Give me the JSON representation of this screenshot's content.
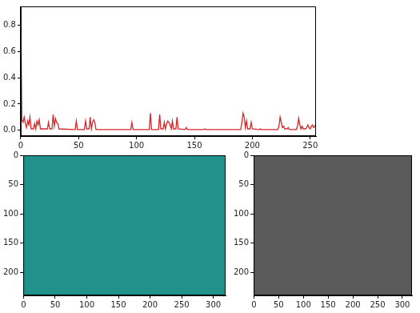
{
  "chart_data": [
    {
      "type": "line",
      "color": "#d62728",
      "grid": false,
      "x": [
        0,
        1,
        2,
        3,
        4,
        5,
        6,
        7,
        8,
        9,
        11,
        12,
        13,
        14,
        15,
        16,
        17,
        23,
        24,
        25,
        27,
        28,
        29,
        30,
        31,
        32,
        33,
        47,
        48,
        49,
        55,
        56,
        57,
        59,
        60,
        61,
        62,
        63,
        64,
        65,
        95,
        96,
        97,
        111,
        112,
        113,
        119,
        120,
        121,
        123,
        124,
        125,
        126,
        127,
        128,
        129,
        130,
        131,
        132,
        134,
        135,
        136,
        142,
        143,
        144,
        158,
        159,
        160,
        190,
        191,
        192,
        193,
        194,
        195,
        196,
        198,
        199,
        200,
        206,
        207,
        208,
        222,
        223,
        224,
        225,
        226,
        227,
        228,
        230,
        231,
        232,
        238,
        239,
        240,
        241,
        242,
        243,
        244,
        246,
        247,
        248,
        249,
        250,
        251,
        252,
        253,
        254,
        255
      ],
      "values": [
        0.9,
        0.08,
        0.06,
        0.1,
        0.05,
        0.02,
        0.07,
        0.04,
        0.1,
        0.01,
        0.01,
        0.05,
        0.01,
        0.07,
        0.04,
        0.08,
        0.01,
        0.01,
        0.06,
        0.01,
        0.01,
        0.12,
        0.03,
        0.09,
        0.06,
        0.05,
        0.01,
        0.005,
        0.07,
        0.005,
        0.005,
        0.07,
        0.01,
        0.01,
        0.1,
        0.01,
        0.06,
        0.08,
        0.06,
        0.005,
        0.005,
        0.06,
        0.005,
        0.005,
        0.13,
        0.005,
        0.005,
        0.12,
        0.01,
        0.01,
        0.06,
        0.01,
        0.05,
        0.07,
        0.06,
        0.04,
        0.01,
        0.07,
        0.01,
        0.01,
        0.1,
        0.01,
        0.005,
        0.02,
        0.005,
        0.005,
        0.01,
        0.005,
        0.005,
        0.06,
        0.13,
        0.1,
        0.02,
        0.07,
        0.01,
        0.01,
        0.06,
        0.01,
        0.005,
        0.01,
        0.005,
        0.005,
        0.03,
        0.1,
        0.06,
        0.02,
        0.03,
        0.01,
        0.01,
        0.02,
        0.005,
        0.005,
        0.03,
        0.09,
        0.04,
        0.01,
        0.03,
        0.01,
        0.01,
        0.02,
        0.04,
        0.02,
        0.01,
        0.03,
        0.04,
        0.02,
        0.03,
        0.05
      ],
      "xlim": [
        0,
        255
      ],
      "xticks": [
        0,
        50,
        100,
        150,
        200,
        250
      ],
      "ylim": [
        -0.045,
        0.945
      ],
      "yticks": [
        {
          "value": 0,
          "label": "0.0"
        },
        0.2,
        0.4,
        0.6,
        0.8
      ]
    },
    {
      "type": "image",
      "grid": false,
      "xlim": [
        -0.5,
        319.5
      ],
      "xticks": [
        0,
        50,
        100,
        150,
        200,
        250,
        300
      ],
      "ylim": [
        239.5,
        -0.5
      ],
      "yticks": [
        0,
        50,
        100,
        150,
        200
      ]
    },
    {
      "type": "image",
      "grid": false,
      "xlim": [
        -0.5,
        319.5
      ],
      "xticks": [
        0,
        50,
        100,
        150,
        200,
        250,
        300
      ],
      "ylim": [
        239.5,
        -0.5
      ],
      "yticks": [
        0,
        50,
        100,
        150,
        200
      ]
    }
  ]
}
